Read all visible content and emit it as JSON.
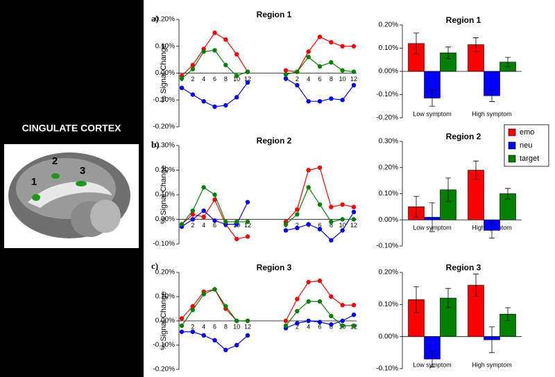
{
  "sidebar": {
    "title": "CINGULATE CORTEX",
    "labels": [
      "1",
      "2",
      "3"
    ]
  },
  "panel_labels": [
    "a)",
    "b)",
    "c)"
  ],
  "chart_data": [
    {
      "type": "line",
      "title": "Region 1",
      "y_label": "% Signal Change",
      "x": [
        0,
        2,
        4,
        6,
        8,
        10,
        12
      ],
      "xticks": [
        0,
        2,
        4,
        6,
        8,
        10,
        12
      ],
      "ylim": [
        -0.2,
        0.2
      ],
      "yticks": [
        {
          "value": -0.2,
          "label": "-0.20%"
        },
        {
          "value": -0.1,
          "label": "-0.10%"
        },
        {
          "value": 0,
          "label": "0.00%"
        },
        {
          "value": 0.1,
          "label": "0.10%"
        },
        {
          "value": 0.2,
          "label": "0.20%"
        }
      ],
      "panels": [
        {
          "series": [
            {
              "name": "emo",
              "color": "#ff0000",
              "values": [
                -0.01,
                0.03,
                0.09,
                0.15,
                0.125,
                0.07,
                0.005
              ]
            },
            {
              "name": "neu",
              "color": "#0000ff",
              "values": [
                -0.055,
                -0.08,
                -0.105,
                -0.125,
                -0.12,
                -0.09,
                -0.035
              ]
            },
            {
              "name": "target",
              "color": "#008000",
              "values": [
                -0.02,
                0.015,
                0.08,
                0.085,
                0.03,
                -0.01,
                0.005
              ]
            }
          ]
        },
        {
          "series": [
            {
              "name": "emo",
              "color": "#ff0000",
              "values": [
                0.01,
                0.005,
                0.08,
                0.135,
                0.115,
                0.1,
                0.1
              ]
            },
            {
              "name": "neu",
              "color": "#0000ff",
              "values": [
                -0.02,
                -0.045,
                -0.105,
                -0.105,
                -0.095,
                -0.1,
                -0.045
              ]
            },
            {
              "name": "target",
              "color": "#008000",
              "values": [
                -0.005,
                0.005,
                0.06,
                0.025,
                0.04,
                0.01,
                0.005
              ]
            }
          ]
        }
      ]
    },
    {
      "type": "bar",
      "title": "Region 1",
      "categories": [
        "Low symptom",
        "High symptom"
      ],
      "ylim": [
        -0.2,
        0.2
      ],
      "yticks": [
        {
          "value": -0.2,
          "label": "-0.20%"
        },
        {
          "value": -0.1,
          "label": "-0.10%"
        },
        {
          "value": 0,
          "label": "0.00%"
        },
        {
          "value": 0.1,
          "label": "0.10%"
        },
        {
          "value": 0.2,
          "label": "0.20%"
        }
      ],
      "series": [
        {
          "name": "emo",
          "color": "#ff0000",
          "values": [
            0.12,
            0.115
          ],
          "errors": [
            0.045,
            0.03
          ]
        },
        {
          "name": "neu",
          "color": "#0000ff",
          "values": [
            -0.115,
            -0.105
          ],
          "errors": [
            0.035,
            0.025
          ]
        },
        {
          "name": "target",
          "color": "#008000",
          "values": [
            0.08,
            0.04
          ],
          "errors": [
            0.025,
            0.02
          ]
        }
      ]
    },
    {
      "type": "line",
      "title": "Region 2",
      "y_label": "% Signal Change",
      "x": [
        0,
        2,
        4,
        6,
        8,
        10,
        12
      ],
      "xticks": [
        0,
        2,
        4,
        6,
        8,
        10,
        12
      ],
      "ylim": [
        -0.1,
        0.3
      ],
      "yticks": [
        {
          "value": -0.1,
          "label": "-0.10%"
        },
        {
          "value": 0,
          "label": "0.00%"
        },
        {
          "value": 0.1,
          "label": "0.10%"
        },
        {
          "value": 0.2,
          "label": "0.20%"
        },
        {
          "value": 0.3,
          "label": "0.30%"
        }
      ],
      "panels": [
        {
          "series": [
            {
              "name": "emo",
              "color": "#ff0000",
              "values": [
                -0.02,
                0.02,
                0.01,
                0.08,
                -0.02,
                -0.08,
                -0.07
              ]
            },
            {
              "name": "neu",
              "color": "#0000ff",
              "values": [
                -0.03,
                0.0,
                0.035,
                -0.005,
                -0.02,
                -0.02,
                0.07
              ]
            },
            {
              "name": "target",
              "color": "#008000",
              "values": [
                -0.02,
                0.035,
                0.13,
                0.1,
                -0.01,
                -0.01,
                -0.01
              ]
            }
          ]
        },
        {
          "series": [
            {
              "name": "emo",
              "color": "#ff0000",
              "values": [
                -0.01,
                0.04,
                0.2,
                0.21,
                0.05,
                0.06,
                0.05
              ]
            },
            {
              "name": "neu",
              "color": "#0000ff",
              "values": [
                -0.045,
                -0.035,
                -0.02,
                -0.04,
                -0.085,
                -0.045,
                0.03
              ]
            },
            {
              "name": "target",
              "color": "#008000",
              "values": [
                -0.02,
                0.02,
                0.13,
                0.06,
                -0.01,
                0.0,
                0.0
              ]
            }
          ]
        }
      ]
    },
    {
      "type": "bar",
      "title": "Region 2",
      "categories": [
        "Low symptom",
        "High symptom"
      ],
      "ylim": [
        -0.1,
        0.3
      ],
      "yticks": [
        {
          "value": -0.1,
          "label": "-0.10%"
        },
        {
          "value": 0,
          "label": "0.00%"
        },
        {
          "value": 0.1,
          "label": "0.10%"
        },
        {
          "value": 0.2,
          "label": "0.20%"
        },
        {
          "value": 0.3,
          "label": "0.30%"
        }
      ],
      "series": [
        {
          "name": "emo",
          "color": "#ff0000",
          "values": [
            0.05,
            0.19
          ],
          "errors": [
            0.04,
            0.035
          ]
        },
        {
          "name": "neu",
          "color": "#0000ff",
          "values": [
            0.01,
            -0.04
          ],
          "errors": [
            0.055,
            0.03
          ]
        },
        {
          "name": "target",
          "color": "#008000",
          "values": [
            0.115,
            0.1
          ],
          "errors": [
            0.045,
            0.02
          ]
        }
      ]
    },
    {
      "type": "line",
      "title": "Region 3",
      "y_label": "% Signal Change",
      "x": [
        0,
        2,
        4,
        6,
        8,
        10,
        12
      ],
      "xticks": [
        2,
        4,
        6,
        8,
        10,
        12
      ],
      "ylim": [
        -0.2,
        0.2
      ],
      "yticks": [
        {
          "value": -0.2,
          "label": "-0.20%"
        },
        {
          "value": -0.1,
          "label": "-0.10%"
        },
        {
          "value": 0,
          "label": "0.00%"
        },
        {
          "value": 0.1,
          "label": "0.10%"
        },
        {
          "value": 0.2,
          "label": "0.20%"
        }
      ],
      "panels": [
        {
          "series": [
            {
              "name": "emo",
              "color": "#ff0000",
              "values": [
                0.01,
                0.06,
                0.12,
                0.13,
                0.05,
                0.0,
                0.0
              ]
            },
            {
              "name": "neu",
              "color": "#0000ff",
              "values": [
                -0.045,
                -0.045,
                -0.06,
                -0.08,
                -0.12,
                -0.1,
                -0.06
              ]
            },
            {
              "name": "target",
              "color": "#008000",
              "values": [
                -0.02,
                0.045,
                0.11,
                0.13,
                0.06,
                0.0,
                0.0
              ]
            }
          ]
        },
        {
          "series": [
            {
              "name": "emo",
              "color": "#ff0000",
              "values": [
                0.0,
                0.09,
                0.16,
                0.165,
                0.1,
                0.065,
                0.065
              ]
            },
            {
              "name": "neu",
              "color": "#0000ff",
              "values": [
                -0.03,
                -0.01,
                0.0,
                -0.005,
                -0.015,
                0.0,
                0.025
              ]
            },
            {
              "name": "target",
              "color": "#008000",
              "values": [
                -0.02,
                0.04,
                0.08,
                0.08,
                0.02,
                -0.02,
                -0.02
              ]
            }
          ]
        }
      ]
    },
    {
      "type": "bar",
      "title": "Region 3",
      "categories": [
        "Low symptom",
        "High symptom"
      ],
      "ylim": [
        -0.1,
        0.2
      ],
      "yticks": [
        {
          "value": -0.1,
          "label": "-0.10%"
        },
        {
          "value": 0,
          "label": "0.00%"
        },
        {
          "value": 0.1,
          "label": "0.10%"
        },
        {
          "value": 0.2,
          "label": "0.20%"
        }
      ],
      "series": [
        {
          "name": "emo",
          "color": "#ff0000",
          "values": [
            0.115,
            0.16
          ],
          "errors": [
            0.04,
            0.035
          ]
        },
        {
          "name": "neu",
          "color": "#0000ff",
          "values": [
            -0.07,
            -0.01
          ],
          "errors": [
            0.025,
            0.04
          ]
        },
        {
          "name": "target",
          "color": "#008000",
          "values": [
            0.12,
            0.07
          ],
          "errors": [
            0.03,
            0.02
          ]
        }
      ]
    }
  ]
}
